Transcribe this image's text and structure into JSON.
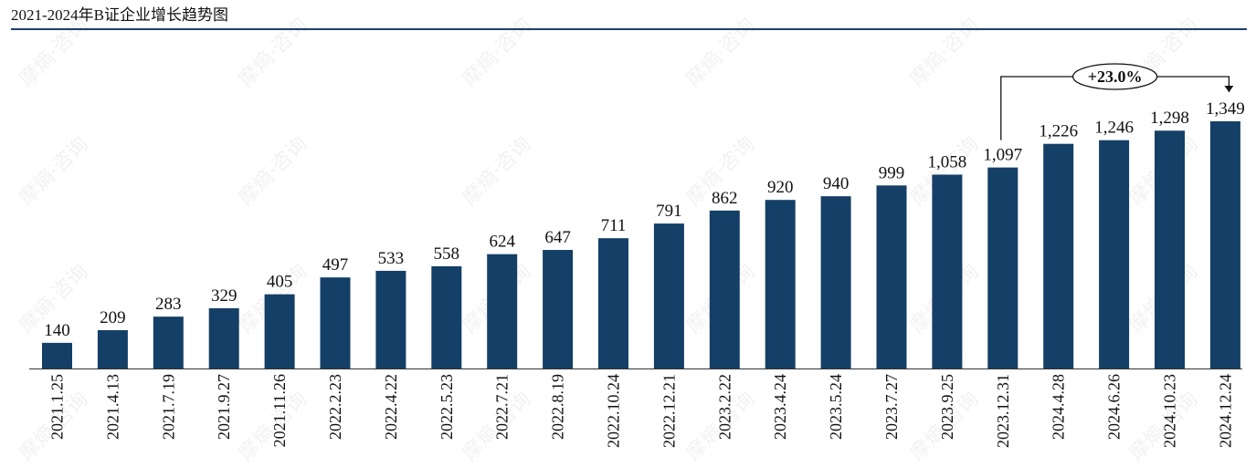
{
  "title": "2021-2024年B证企业增长趋势图",
  "watermark": "摩熵·咨询",
  "colors": {
    "bar": "#143f66",
    "rule": "#1f3f6b",
    "axis": "#333333",
    "annotation": "#111111"
  },
  "chart_data": {
    "type": "bar",
    "title": "2021-2024年B证企业增长趋势图",
    "xlabel": "",
    "ylabel": "",
    "ylim": [
      0,
      1349
    ],
    "grid": false,
    "legend": "none",
    "categories": [
      "2021.1.25",
      "2021.4.13",
      "2021.7.19",
      "2021.9.27",
      "2021.11.26",
      "2022.2.23",
      "2022.4.22",
      "2022.5.23",
      "2022.7.21",
      "2022.8.19",
      "2022.10.24",
      "2022.12.21",
      "2023.2.22",
      "2023.4.24",
      "2023.5.24",
      "2023.7.27",
      "2023.9.25",
      "2023.12.31",
      "2024.4.28",
      "2024.6.26",
      "2024.10.23",
      "2024.12.24"
    ],
    "values": [
      140,
      209,
      283,
      329,
      405,
      497,
      533,
      558,
      624,
      647,
      711,
      791,
      862,
      920,
      940,
      999,
      1058,
      1097,
      1226,
      1246,
      1298,
      1349
    ],
    "data_labels": [
      "140",
      "209",
      "283",
      "329",
      "405",
      "497",
      "533",
      "558",
      "624",
      "647",
      "711",
      "791",
      "862",
      "920",
      "940",
      "999",
      "1,058",
      "1,097",
      "1,226",
      "1,246",
      "1,298",
      "1,349"
    ],
    "annotations": [
      {
        "text": "+23.0%",
        "from": "2023.12.31",
        "to": "2024.12.24"
      }
    ]
  }
}
